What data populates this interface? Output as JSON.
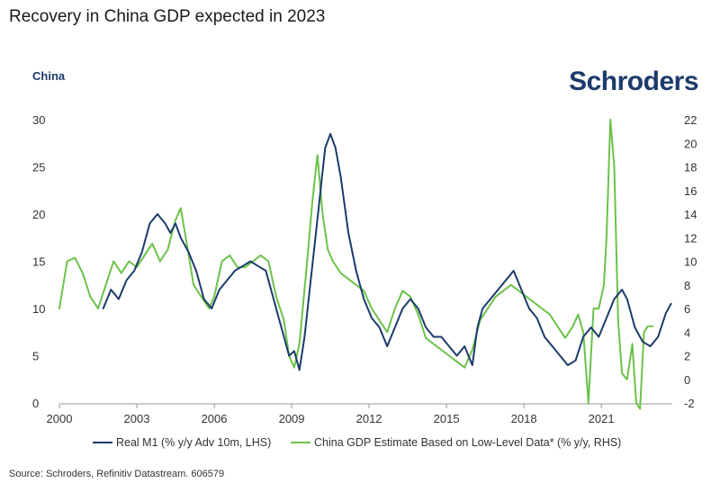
{
  "header": {
    "title": "Recovery in China GDP expected in 2023",
    "region_label": "China",
    "logo_text": "Schroders"
  },
  "footer": {
    "source": "Source: Schroders, Refinitiv Datastream. 606579"
  },
  "colors": {
    "m1": "#1c3b6b",
    "gdp": "#6cc24a",
    "axis": "#999999"
  },
  "chart_data": {
    "type": "line",
    "title": "Recovery in China GDP expected in 2023",
    "xlim": [
      2000,
      2023.75
    ],
    "ylim_left": [
      0,
      30
    ],
    "ylim_right": [
      -2,
      22
    ],
    "x_ticks": [
      "2000",
      "2003",
      "2006",
      "2009",
      "2012",
      "2015",
      "2018",
      "2021"
    ],
    "x_tick_values": [
      2000,
      2003,
      2006,
      2009,
      2012,
      2015,
      2018,
      2021
    ],
    "y_left_ticks": [
      "0",
      "5",
      "10",
      "15",
      "20",
      "25",
      "30"
    ],
    "y_left_tick_values": [
      0,
      5,
      10,
      15,
      20,
      25,
      30
    ],
    "y_right_ticks": [
      "-2",
      "0",
      "2",
      "4",
      "6",
      "8",
      "10",
      "12",
      "14",
      "16",
      "18",
      "20",
      "22"
    ],
    "y_right_tick_values": [
      -2,
      0,
      2,
      4,
      6,
      8,
      10,
      12,
      14,
      16,
      18,
      20,
      22
    ],
    "grid": false,
    "legend_position": "bottom",
    "series": [
      {
        "name": "Real M1 (% y/y Adv 10m, LHS)",
        "axis": "left",
        "x": [
          2001.7,
          2002.0,
          2002.3,
          2002.6,
          2002.9,
          2003.2,
          2003.5,
          2003.8,
          2004.1,
          2004.3,
          2004.5,
          2004.7,
          2005.0,
          2005.3,
          2005.6,
          2005.9,
          2006.2,
          2006.5,
          2006.8,
          2007.1,
          2007.4,
          2007.7,
          2008.0,
          2008.3,
          2008.5,
          2008.7,
          2008.9,
          2009.1,
          2009.3,
          2009.5,
          2009.7,
          2009.9,
          2010.1,
          2010.3,
          2010.5,
          2010.7,
          2010.9,
          2011.2,
          2011.5,
          2011.8,
          2012.1,
          2012.4,
          2012.7,
          2013.0,
          2013.3,
          2013.6,
          2013.9,
          2014.2,
          2014.5,
          2014.8,
          2015.1,
          2015.4,
          2015.7,
          2016.0,
          2016.2,
          2016.4,
          2016.7,
          2017.0,
          2017.3,
          2017.6,
          2017.9,
          2018.2,
          2018.5,
          2018.8,
          2019.1,
          2019.4,
          2019.7,
          2020.0,
          2020.3,
          2020.6,
          2020.9,
          2021.2,
          2021.5,
          2021.8,
          2022.0,
          2022.3,
          2022.6,
          2022.9,
          2023.2,
          2023.5,
          2023.7
        ],
        "values": [
          10.0,
          12.0,
          11.0,
          13.0,
          14.0,
          16.0,
          19.0,
          20.0,
          19.0,
          18.0,
          19.0,
          17.5,
          16.0,
          14.0,
          11.0,
          10.0,
          12.0,
          13.0,
          14.0,
          14.5,
          15.0,
          14.5,
          14.0,
          11.0,
          9.0,
          7.0,
          5.0,
          5.5,
          3.5,
          7.0,
          12.0,
          17.0,
          22.0,
          27.0,
          28.5,
          27.0,
          24.0,
          18.0,
          14.0,
          11.0,
          9.0,
          8.0,
          6.0,
          8.0,
          10.0,
          11.0,
          10.0,
          8.0,
          7.0,
          7.0,
          6.0,
          5.0,
          6.0,
          4.0,
          8.0,
          10.0,
          11.0,
          12.0,
          13.0,
          14.0,
          12.0,
          10.0,
          9.0,
          7.0,
          6.0,
          5.0,
          4.0,
          4.5,
          7.0,
          8.0,
          7.0,
          9.0,
          11.0,
          12.0,
          11.0,
          8.0,
          6.5,
          6.0,
          7.0,
          9.5,
          10.5
        ]
      },
      {
        "name": "China GDP Estimate Based on Low-Level Data* (% y/y, RHS)",
        "axis": "right",
        "x": [
          2000.0,
          2000.3,
          2000.6,
          2000.9,
          2001.2,
          2001.5,
          2001.8,
          2002.1,
          2002.4,
          2002.7,
          2003.0,
          2003.3,
          2003.6,
          2003.9,
          2004.2,
          2004.5,
          2004.7,
          2004.9,
          2005.2,
          2005.5,
          2005.8,
          2006.0,
          2006.3,
          2006.6,
          2006.9,
          2007.2,
          2007.5,
          2007.8,
          2008.1,
          2008.4,
          2008.7,
          2008.9,
          2009.1,
          2009.3,
          2009.6,
          2009.8,
          2010.0,
          2010.2,
          2010.4,
          2010.6,
          2010.9,
          2011.2,
          2011.5,
          2011.8,
          2012.1,
          2012.4,
          2012.7,
          2013.0,
          2013.3,
          2013.6,
          2013.9,
          2014.2,
          2014.5,
          2014.8,
          2015.1,
          2015.4,
          2015.7,
          2016.0,
          2016.3,
          2016.6,
          2016.9,
          2017.2,
          2017.5,
          2017.8,
          2018.1,
          2018.4,
          2018.7,
          2019.0,
          2019.3,
          2019.6,
          2019.9,
          2020.1,
          2020.3,
          2020.5,
          2020.7,
          2020.9,
          2021.1,
          2021.2,
          2021.35,
          2021.5,
          2021.65,
          2021.8,
          2022.0,
          2022.2,
          2022.35,
          2022.5,
          2022.65,
          2022.8,
          2023.0
        ],
        "values": [
          6.0,
          10.0,
          10.3,
          9.0,
          7.0,
          6.0,
          8.0,
          10.0,
          9.0,
          10.0,
          9.5,
          10.5,
          11.5,
          10.0,
          11.0,
          13.5,
          14.5,
          12.0,
          8.0,
          7.0,
          6.0,
          7.0,
          10.0,
          10.5,
          9.5,
          9.5,
          10.0,
          10.5,
          10.0,
          7.0,
          5.0,
          2.0,
          1.0,
          3.0,
          10.0,
          15.0,
          19.0,
          14.0,
          11.0,
          10.0,
          9.0,
          8.5,
          8.0,
          7.5,
          6.0,
          5.0,
          4.0,
          6.0,
          7.5,
          7.0,
          5.5,
          3.5,
          3.0,
          2.5,
          2.0,
          1.5,
          1.0,
          2.5,
          5.0,
          6.0,
          7.0,
          7.5,
          8.0,
          7.5,
          7.0,
          6.5,
          6.0,
          5.5,
          4.5,
          3.5,
          4.5,
          5.5,
          4.0,
          -2.0,
          6.0,
          6.0,
          8.0,
          12.0,
          22.0,
          18.0,
          5.0,
          0.5,
          0.0,
          3.0,
          -2.0,
          -2.5,
          4.0,
          4.5,
          4.5
        ]
      }
    ]
  }
}
